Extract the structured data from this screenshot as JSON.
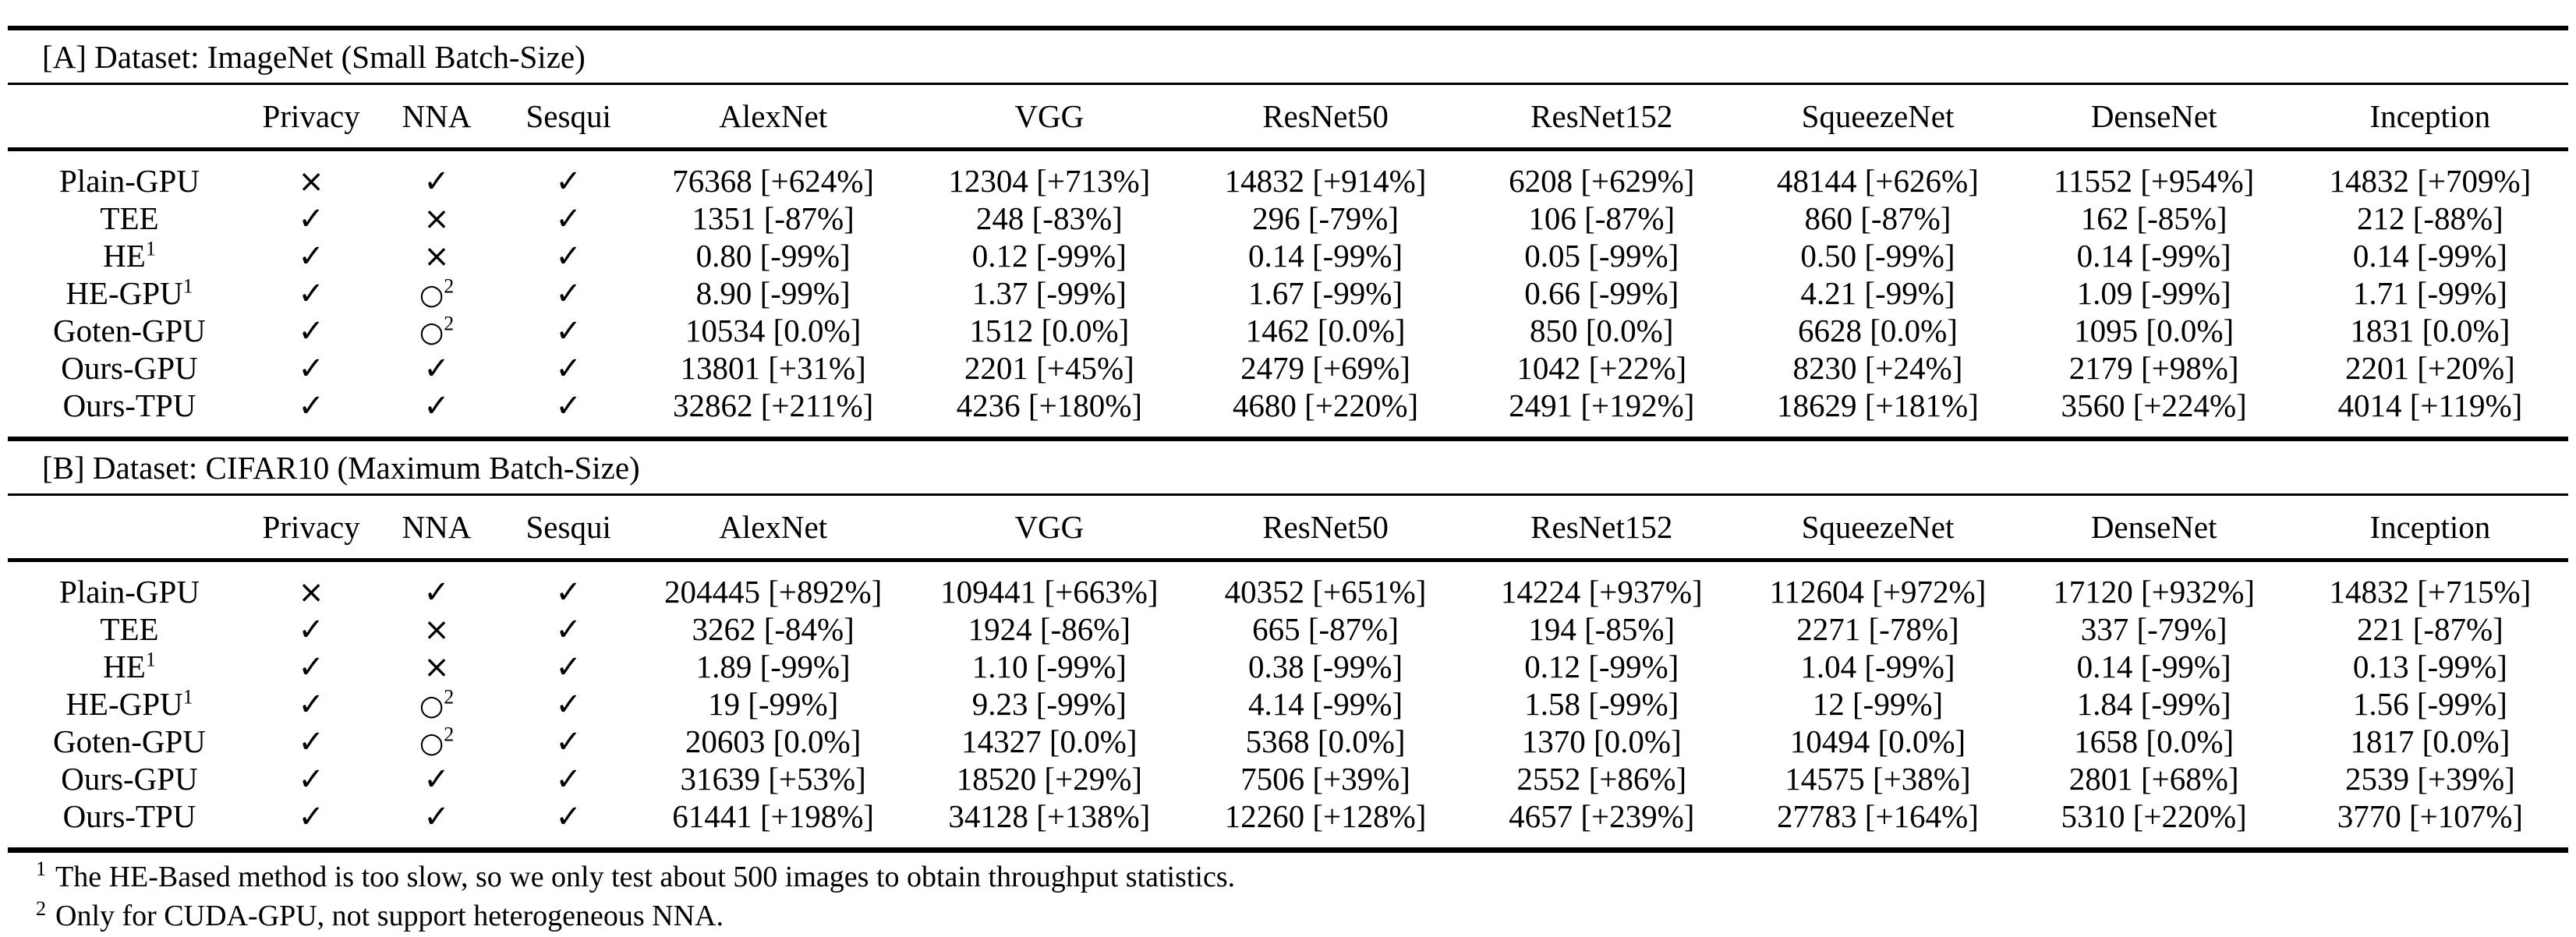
{
  "page": {
    "background": "#ffffff",
    "text_color": "#000000"
  },
  "symbols": {
    "check": "✓",
    "cross": "×",
    "circle": "○"
  },
  "sections": [
    {
      "title": "[A] Dataset: ImageNet (Small Batch-Size)",
      "columns": [
        "",
        "Privacy",
        "NNA",
        "Sesqui",
        "AlexNet",
        "VGG",
        "ResNet50",
        "ResNet152",
        "SqueezeNet",
        "DenseNet",
        "Inception"
      ],
      "rows": [
        {
          "label": "Plain-GPU",
          "label_sup": "",
          "privacy": {
            "mark": "cross"
          },
          "nna": {
            "mark": "check"
          },
          "sesqui": {
            "mark": "check"
          },
          "values": [
            "76368 [+624%]",
            "12304 [+713%]",
            "14832 [+914%]",
            "6208 [+629%]",
            "48144 [+626%]",
            "11552 [+954%]",
            "14832 [+709%]"
          ]
        },
        {
          "label": "TEE",
          "label_sup": "",
          "privacy": {
            "mark": "check"
          },
          "nna": {
            "mark": "cross"
          },
          "sesqui": {
            "mark": "check"
          },
          "values": [
            "1351 [-87%]",
            "248 [-83%]",
            "296 [-79%]",
            "106 [-87%]",
            "860 [-87%]",
            "162 [-85%]",
            "212 [-88%]"
          ]
        },
        {
          "label": "HE",
          "label_sup": "1",
          "privacy": {
            "mark": "check"
          },
          "nna": {
            "mark": "cross"
          },
          "sesqui": {
            "mark": "check"
          },
          "values": [
            "0.80 [-99%]",
            "0.12 [-99%]",
            "0.14 [-99%]",
            "0.05 [-99%]",
            "0.50 [-99%]",
            "0.14 [-99%]",
            "0.14 [-99%]"
          ]
        },
        {
          "label": "HE-GPU",
          "label_sup": "1",
          "privacy": {
            "mark": "check"
          },
          "nna": {
            "mark": "circle",
            "sup": "2"
          },
          "sesqui": {
            "mark": "check"
          },
          "values": [
            "8.90 [-99%]",
            "1.37 [-99%]",
            "1.67 [-99%]",
            "0.66 [-99%]",
            "4.21 [-99%]",
            "1.09 [-99%]",
            "1.71 [-99%]"
          ]
        },
        {
          "label": "Goten-GPU",
          "label_sup": "",
          "privacy": {
            "mark": "check"
          },
          "nna": {
            "mark": "circle",
            "sup": "2"
          },
          "sesqui": {
            "mark": "check"
          },
          "values": [
            "10534 [0.0%]",
            "1512 [0.0%]",
            "1462 [0.0%]",
            "850 [0.0%]",
            "6628 [0.0%]",
            "1095 [0.0%]",
            "1831 [0.0%]"
          ]
        },
        {
          "label": "Ours-GPU",
          "label_sup": "",
          "privacy": {
            "mark": "check"
          },
          "nna": {
            "mark": "check"
          },
          "sesqui": {
            "mark": "check"
          },
          "values": [
            "13801 [+31%]",
            "2201 [+45%]",
            "2479 [+69%]",
            "1042 [+22%]",
            "8230 [+24%]",
            "2179 [+98%]",
            "2201 [+20%]"
          ]
        },
        {
          "label": "Ours-TPU",
          "label_sup": "",
          "privacy": {
            "mark": "check"
          },
          "nna": {
            "mark": "check"
          },
          "sesqui": {
            "mark": "check"
          },
          "values": [
            "32862 [+211%]",
            "4236 [+180%]",
            "4680 [+220%]",
            "2491 [+192%]",
            "18629 [+181%]",
            "3560 [+224%]",
            "4014 [+119%]"
          ]
        }
      ]
    },
    {
      "title": "[B] Dataset: CIFAR10 (Maximum Batch-Size)",
      "columns": [
        "",
        "Privacy",
        "NNA",
        "Sesqui",
        "AlexNet",
        "VGG",
        "ResNet50",
        "ResNet152",
        "SqueezeNet",
        "DenseNet",
        "Inception"
      ],
      "rows": [
        {
          "label": "Plain-GPU",
          "label_sup": "",
          "privacy": {
            "mark": "cross"
          },
          "nna": {
            "mark": "check"
          },
          "sesqui": {
            "mark": "check"
          },
          "values": [
            "204445 [+892%]",
            "109441 [+663%]",
            "40352 [+651%]",
            "14224 [+937%]",
            "112604 [+972%]",
            "17120 [+932%]",
            "14832 [+715%]"
          ]
        },
        {
          "label": "TEE",
          "label_sup": "",
          "privacy": {
            "mark": "check"
          },
          "nna": {
            "mark": "cross"
          },
          "sesqui": {
            "mark": "check"
          },
          "values": [
            "3262 [-84%]",
            "1924 [-86%]",
            "665 [-87%]",
            "194 [-85%]",
            "2271 [-78%]",
            "337 [-79%]",
            "221 [-87%]"
          ]
        },
        {
          "label": "HE",
          "label_sup": "1",
          "privacy": {
            "mark": "check"
          },
          "nna": {
            "mark": "cross"
          },
          "sesqui": {
            "mark": "check"
          },
          "values": [
            "1.89 [-99%]",
            "1.10 [-99%]",
            "0.38 [-99%]",
            "0.12 [-99%]",
            "1.04 [-99%]",
            "0.14 [-99%]",
            "0.13 [-99%]"
          ]
        },
        {
          "label": "HE-GPU",
          "label_sup": "1",
          "privacy": {
            "mark": "check"
          },
          "nna": {
            "mark": "circle",
            "sup": "2"
          },
          "sesqui": {
            "mark": "check"
          },
          "values": [
            "19 [-99%]",
            "9.23 [-99%]",
            "4.14 [-99%]",
            "1.58 [-99%]",
            "12 [-99%]",
            "1.84 [-99%]",
            "1.56 [-99%]"
          ]
        },
        {
          "label": "Goten-GPU",
          "label_sup": "",
          "privacy": {
            "mark": "check"
          },
          "nna": {
            "mark": "circle",
            "sup": "2"
          },
          "sesqui": {
            "mark": "check"
          },
          "values": [
            "20603 [0.0%]",
            "14327 [0.0%]",
            "5368 [0.0%]",
            "1370 [0.0%]",
            "10494 [0.0%]",
            "1658 [0.0%]",
            "1817 [0.0%]"
          ]
        },
        {
          "label": "Ours-GPU",
          "label_sup": "",
          "privacy": {
            "mark": "check"
          },
          "nna": {
            "mark": "check"
          },
          "sesqui": {
            "mark": "check"
          },
          "values": [
            "31639 [+53%]",
            "18520 [+29%]",
            "7506 [+39%]",
            "2552 [+86%]",
            "14575 [+38%]",
            "2801 [+68%]",
            "2539 [+39%]"
          ]
        },
        {
          "label": "Ours-TPU",
          "label_sup": "",
          "privacy": {
            "mark": "check"
          },
          "nna": {
            "mark": "check"
          },
          "sesqui": {
            "mark": "check"
          },
          "values": [
            "61441 [+198%]",
            "34128 [+138%]",
            "12260 [+128%]",
            "4657 [+239%]",
            "27783 [+164%]",
            "5310 [+220%]",
            "3770 [+107%]"
          ]
        }
      ]
    }
  ],
  "footnotes": [
    {
      "marker": "1",
      "text": "The HE-Based method is too slow, so we only test about 500 images to obtain throughput statistics."
    },
    {
      "marker": "2",
      "text": "Only for CUDA-GPU, not support heterogeneous NNA."
    }
  ]
}
